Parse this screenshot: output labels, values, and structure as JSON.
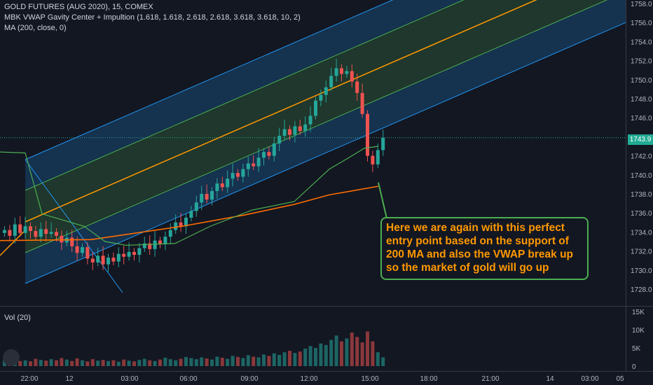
{
  "header": {
    "symbol_line": "GOLD FUTURES (AUG 2020), 15, COMEX",
    "indicator_line": "MBK VWAP Gavity Center + Impultion (1.618, 1.618, 2.618, 2.618, 3.618, 3.618, 10, 2)",
    "ma_line": "MA (200, close, 0)"
  },
  "volume_pane": {
    "label": "Vol (20)"
  },
  "annotation": {
    "text": "Here we are again with this perfect entry point based on the support of 200 MA and also the VWAP break up so the market of gold will go up",
    "border_color": "#4caf50",
    "text_color": "#ff9800"
  },
  "last_price": {
    "value": "1743.9",
    "color": "#22ab94"
  },
  "colors": {
    "background": "#131722",
    "up_candle": "#26a69a",
    "down_candle": "#ef5350",
    "ma200": "#ff6d00",
    "vwap": "#4caf50",
    "channel_outer": "#2196f3",
    "channel_mid": "#4caf50",
    "center_line": "#ff9800"
  },
  "chart_data": {
    "type": "candlestick",
    "price_axis": {
      "min": 1727,
      "max": 1759,
      "ticks": [
        "1758.0",
        "1756.0",
        "1754.0",
        "1752.0",
        "1750.0",
        "1748.0",
        "1746.0",
        "1744.0",
        "1742.0",
        "1740.0",
        "1738.0",
        "1736.0",
        "1734.0",
        "1732.0",
        "1730.0",
        "1728.0"
      ]
    },
    "volume_axis": {
      "ticks": [
        "15K",
        "10K",
        "5K",
        "0"
      ]
    },
    "time_axis": {
      "labels": [
        "22:00",
        "12",
        "03:00",
        "06:00",
        "09:00",
        "12:00",
        "15:00",
        "18:00",
        "21:00",
        "14",
        "03:00",
        "05"
      ]
    },
    "closes": [
      1734.2,
      1733.6,
      1734.8,
      1733.9,
      1734.6,
      1734.1,
      1733.5,
      1734.3,
      1733.8,
      1734.0,
      1733.6,
      1732.9,
      1733.4,
      1732.5,
      1731.8,
      1732.4,
      1731.2,
      1730.8,
      1731.5,
      1730.6,
      1731.3,
      1730.9,
      1731.7,
      1731.4,
      1731.9,
      1731.6,
      1732.3,
      1732.8,
      1732.2,
      1733.1,
      1732.7,
      1733.5,
      1734.2,
      1735.0,
      1734.6,
      1735.5,
      1736.2,
      1737.1,
      1738.0,
      1737.4,
      1738.3,
      1739.1,
      1738.7,
      1739.6,
      1740.2,
      1739.8,
      1740.6,
      1741.2,
      1740.9,
      1741.8,
      1742.4,
      1742.0,
      1743.3,
      1744.1,
      1744.8,
      1744.2,
      1745.1,
      1744.6,
      1745.3,
      1746.2,
      1747.8,
      1748.4,
      1749.2,
      1750.4,
      1751.2,
      1750.6,
      1750.9,
      1749.8,
      1748.6,
      1746.4,
      1742.0,
      1741.1,
      1742.6,
      1743.9
    ],
    "volume": [
      1.5,
      1.2,
      1.8,
      1.4,
      1.6,
      1.3,
      2.0,
      1.7,
      1.5,
      1.9,
      1.6,
      2.2,
      1.8,
      1.4,
      2.1,
      1.6,
      1.3,
      1.9,
      1.5,
      1.7,
      1.4,
      1.6,
      1.2,
      1.8,
      1.5,
      1.3,
      1.7,
      2.0,
      1.6,
      1.4,
      1.8,
      2.3,
      1.9,
      1.6,
      2.0,
      2.5,
      2.2,
      1.9,
      2.4,
      2.1,
      1.8,
      2.6,
      2.3,
      2.0,
      2.8,
      2.5,
      2.2,
      3.0,
      2.6,
      2.4,
      3.2,
      2.8,
      3.5,
      3.1,
      3.8,
      4.2,
      3.6,
      4.0,
      4.8,
      5.5,
      5.0,
      6.2,
      5.8,
      7.2,
      8.4,
      6.8,
      7.6,
      9.2,
      8.0,
      6.5,
      9.5,
      6.8,
      3.8,
      2.4
    ],
    "ma200_points": [
      [
        0,
        1733.1
      ],
      [
        130,
        1733.2
      ],
      [
        260,
        1734.6
      ],
      [
        350,
        1735.8
      ],
      [
        420,
        1736.9
      ],
      [
        470,
        1737.9
      ],
      [
        540,
        1738.8
      ]
    ],
    "vwap_points": [
      [
        0,
        1742.4
      ],
      [
        36,
        1742.3
      ],
      [
        60,
        1735.9
      ],
      [
        120,
        1734.6
      ],
      [
        150,
        1733.0
      ],
      [
        180,
        1732.6
      ],
      [
        250,
        1732.8
      ],
      [
        300,
        1734.6
      ],
      [
        360,
        1736.3
      ],
      [
        420,
        1737.2
      ],
      [
        470,
        1740.6
      ],
      [
        500,
        1741.9
      ],
      [
        520,
        1742.8
      ],
      [
        540,
        1743.0
      ]
    ]
  }
}
